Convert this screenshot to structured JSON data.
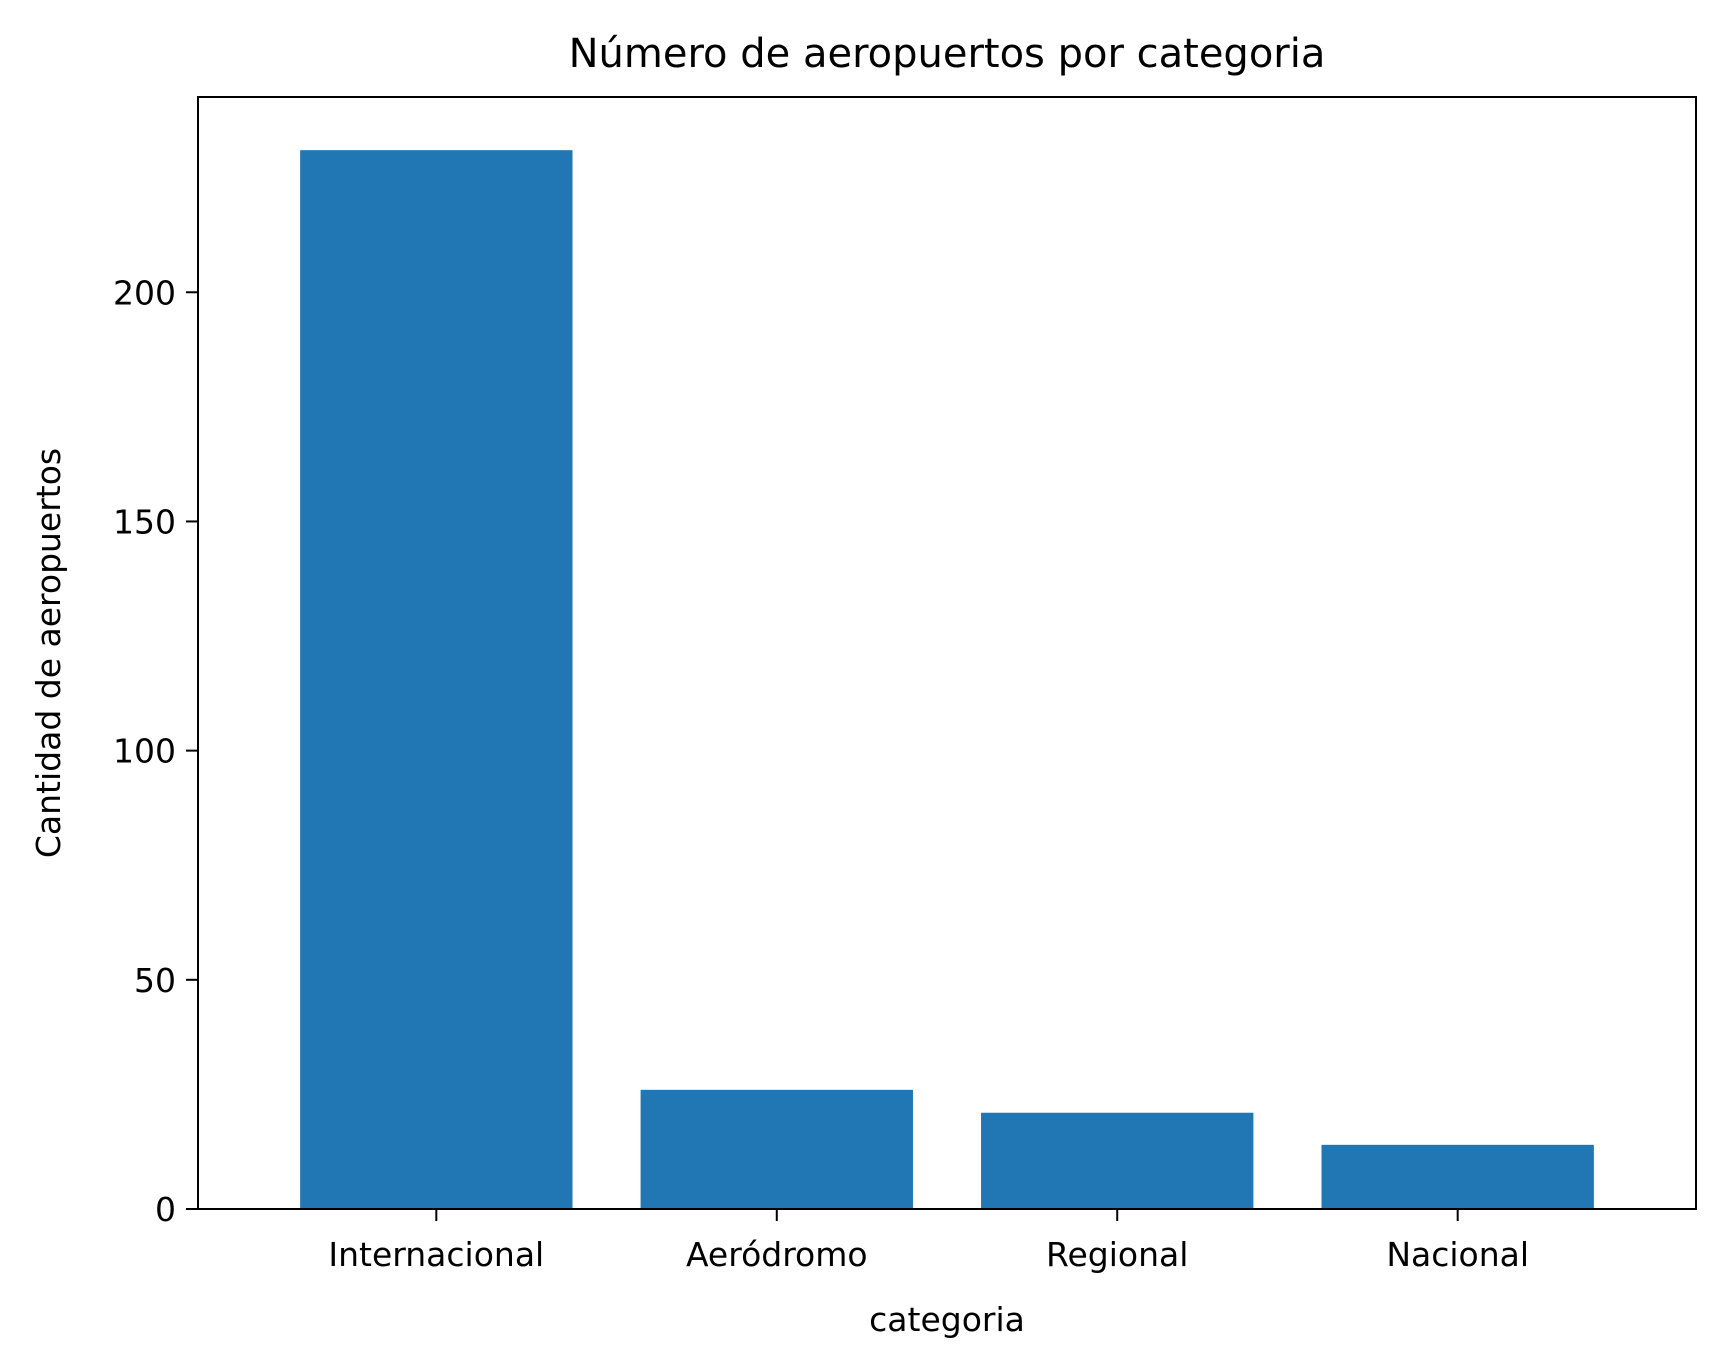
{
  "chart_data": {
    "type": "bar",
    "title": "Número de aeropuertos por categoria",
    "xlabel": "categoria",
    "ylabel": "Cantidad de aeropuertos",
    "categories": [
      "Internacional",
      "Aeródromo",
      "Regional",
      "Nacional"
    ],
    "values": [
      231,
      26,
      21,
      14
    ],
    "ylim": [
      0,
      242.6
    ],
    "yticks": [
      0,
      50,
      100,
      150,
      200
    ],
    "ytick_labels": [
      "0",
      "50",
      "100",
      "150",
      "200"
    ],
    "grid": false,
    "legend": "none",
    "bar_color": "#2077b4"
  }
}
